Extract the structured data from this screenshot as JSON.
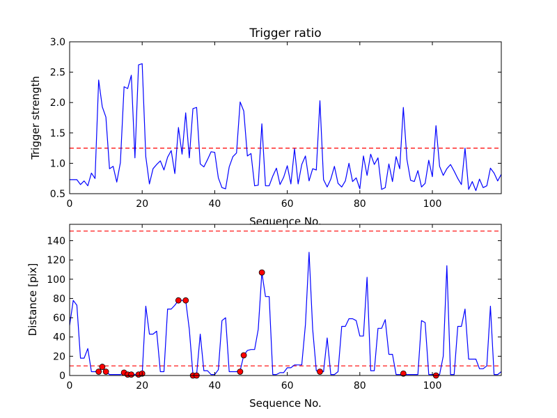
{
  "chart_data": [
    {
      "type": "line",
      "title": "Trigger ratio",
      "xlabel": "Sequence No.",
      "ylabel": "Trigger strength",
      "xlim": [
        0,
        119
      ],
      "ylim": [
        0.5,
        3.0
      ],
      "xticks": [
        0,
        20,
        40,
        60,
        80,
        100
      ],
      "yticks": [
        0.5,
        1.0,
        1.5,
        2.0,
        2.5,
        3.0
      ],
      "xtick_labels": [
        "0",
        "20",
        "40",
        "60",
        "80",
        "100"
      ],
      "ytick_labels": [
        "0.5",
        "1.0",
        "1.5",
        "2.0",
        "2.5",
        "3.0"
      ],
      "grid": false,
      "threshold": 1.25,
      "line_color": "#0000ff",
      "threshold_color": "#ff0000",
      "y": [
        0.73,
        0.73,
        0.73,
        0.65,
        0.71,
        0.63,
        0.84,
        0.75,
        2.37,
        1.93,
        1.76,
        0.91,
        0.95,
        0.69,
        1.01,
        2.26,
        2.23,
        2.45,
        1.09,
        2.62,
        2.64,
        1.11,
        0.66,
        0.91,
        0.98,
        1.04,
        0.89,
        1.1,
        1.21,
        0.83,
        1.59,
        1.15,
        1.83,
        1.09,
        1.9,
        1.92,
        0.99,
        0.94,
        1.06,
        1.19,
        1.18,
        0.76,
        0.6,
        0.58,
        0.94,
        1.11,
        1.17,
        2.01,
        1.86,
        1.12,
        1.16,
        0.63,
        0.64,
        1.65,
        0.63,
        0.63,
        0.79,
        0.92,
        0.65,
        0.77,
        0.96,
        0.66,
        1.24,
        0.66,
        0.98,
        1.12,
        0.71,
        0.91,
        0.89,
        2.03,
        0.73,
        0.61,
        0.74,
        0.95,
        0.67,
        0.61,
        0.71,
        1.0,
        0.7,
        0.76,
        0.58,
        1.12,
        0.8,
        1.15,
        0.98,
        1.09,
        0.57,
        0.6,
        0.99,
        0.7,
        1.11,
        0.91,
        1.92,
        1.06,
        0.72,
        0.7,
        0.88,
        0.61,
        0.67,
        1.05,
        0.78,
        1.62,
        0.95,
        0.8,
        0.91,
        0.98,
        0.87,
        0.75,
        0.65,
        1.25,
        0.57,
        0.7,
        0.55,
        0.74,
        0.6,
        0.63,
        0.92,
        0.84,
        0.71,
        0.82
      ]
    },
    {
      "type": "line",
      "title": "",
      "xlabel": "Sequence No.",
      "ylabel": "Distance [pix]",
      "xlim": [
        0,
        119
      ],
      "ylim": [
        0,
        157
      ],
      "xticks": [
        0,
        20,
        40,
        60,
        80,
        100
      ],
      "yticks": [
        0,
        20,
        40,
        60,
        80,
        100,
        120,
        140
      ],
      "xtick_labels": [
        "0",
        "20",
        "40",
        "60",
        "80",
        "100"
      ],
      "ytick_labels": [
        "0",
        "20",
        "40",
        "60",
        "80",
        "100",
        "120",
        "140"
      ],
      "grid": false,
      "thresholds": [
        150,
        10
      ],
      "line_color": "#0000ff",
      "threshold_color": "#ff0000",
      "marker_color": "#ff0000",
      "y": [
        52,
        78,
        73,
        18,
        18,
        28,
        4,
        4,
        4,
        9,
        4,
        1,
        1,
        1,
        1,
        3,
        1,
        1,
        1,
        1,
        1,
        72,
        43,
        43,
        46,
        4,
        4,
        69,
        69,
        73,
        78,
        78,
        78,
        48,
        1,
        1,
        43,
        5,
        5,
        1,
        1,
        6,
        57,
        60,
        4,
        4,
        4,
        5,
        21,
        26,
        27,
        27,
        48,
        107,
        82,
        82,
        1,
        1,
        3,
        3,
        8,
        8,
        11,
        11,
        11,
        53,
        128,
        48,
        5,
        4,
        4,
        39,
        1,
        1,
        4,
        51,
        51,
        59,
        59,
        57,
        41,
        41,
        102,
        5,
        5,
        49,
        49,
        58,
        22,
        22,
        1,
        1,
        1,
        1,
        1,
        1,
        1,
        57,
        55,
        1,
        1,
        1,
        1,
        20,
        114,
        1,
        1,
        51,
        51,
        69,
        17,
        17,
        17,
        7,
        7,
        10,
        72,
        1,
        1,
        4
      ],
      "markers": {
        "x": [
          8,
          9,
          10,
          15,
          16,
          17,
          19,
          20,
          30,
          32,
          34,
          35,
          47,
          48,
          53,
          69,
          92,
          101
        ],
        "y": [
          4,
          9,
          4,
          3,
          1,
          1,
          1,
          2,
          78,
          78,
          0,
          0,
          4,
          21,
          107,
          4,
          2,
          0
        ]
      }
    }
  ]
}
